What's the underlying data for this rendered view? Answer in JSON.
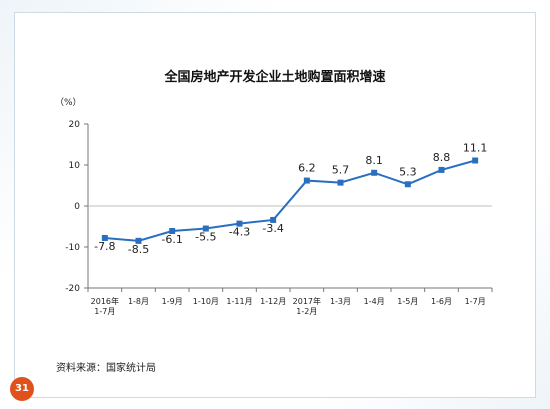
{
  "slide": {
    "page_number": "31",
    "source_note": "资料来源：国家统计局"
  },
  "chart_data": {
    "type": "line",
    "title": "全国房地产开发企业土地购置面积增速",
    "ylabel": "（%）",
    "xlabel": "",
    "ylim": [
      -20,
      20
    ],
    "yticks": [
      20,
      10,
      0,
      -10,
      -20
    ],
    "grid": false,
    "categories": [
      [
        "2016年",
        "1-7月"
      ],
      [
        "1-8月"
      ],
      [
        "1-9月"
      ],
      [
        "1-10月"
      ],
      [
        "1-11月"
      ],
      [
        "1-12月"
      ],
      [
        "2017年",
        "1-2月"
      ],
      [
        "1-3月"
      ],
      [
        "1-4月"
      ],
      [
        "1-5月"
      ],
      [
        "1-6月"
      ],
      [
        "1-7月"
      ]
    ],
    "series": [
      {
        "values": [
          -7.8,
          -8.5,
          -6.1,
          -5.5,
          -4.3,
          -3.4,
          6.2,
          5.7,
          8.1,
          5.3,
          8.8,
          11.1
        ],
        "labels": [
          "-7.8",
          "-8.5",
          "-6.1",
          "-5.5",
          "-4.3",
          "-3.4",
          "6.2",
          "5.7",
          "8.1",
          "5.3",
          "8.8",
          "11.1"
        ],
        "color": "#2a6fbf"
      }
    ]
  }
}
